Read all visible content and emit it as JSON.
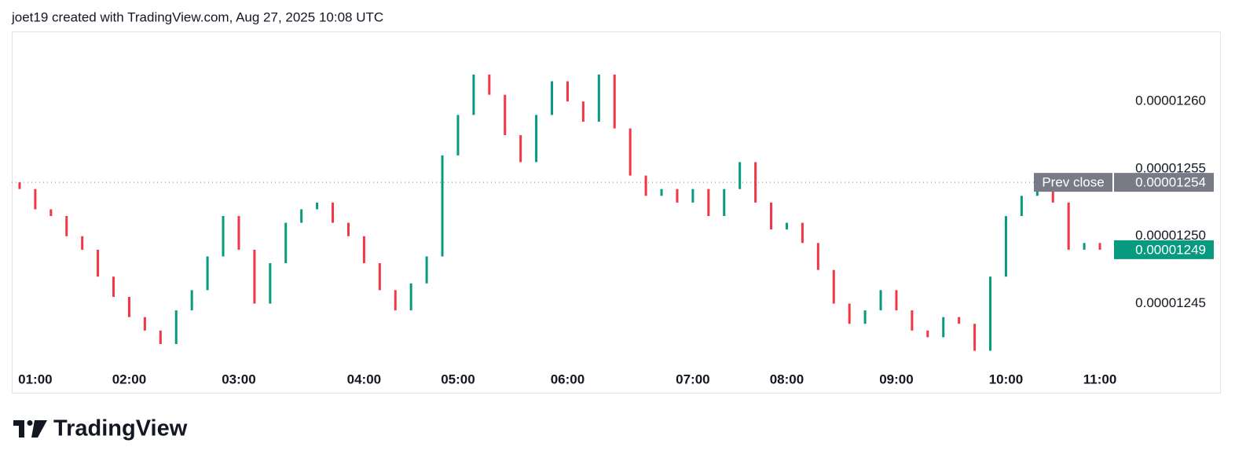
{
  "header": {
    "credit": "joet19 created with TradingView.com, Aug 27, 2025 10:08 UTC"
  },
  "footer": {
    "brand": "TradingView"
  },
  "chart_data": {
    "type": "candlestick",
    "categories": [
      null,
      "01:00",
      null,
      null,
      null,
      null,
      null,
      "02:00",
      null,
      null,
      null,
      null,
      null,
      null,
      "03:00",
      null,
      null,
      null,
      null,
      null,
      null,
      null,
      "04:00",
      null,
      null,
      null,
      null,
      null,
      "05:00",
      null,
      null,
      null,
      null,
      null,
      null,
      "06:00",
      null,
      null,
      null,
      null,
      null,
      null,
      null,
      "07:00",
      null,
      null,
      null,
      null,
      null,
      "08:00",
      null,
      null,
      null,
      null,
      null,
      null,
      "09:00",
      null,
      null,
      null,
      null,
      null,
      null,
      "10:00",
      null,
      null,
      null,
      null,
      null,
      "11:00"
    ],
    "series": [
      {
        "up_color": "#089981",
        "down_color": "#f23645",
        "opens": [
          1.254e-05,
          1.2535e-05,
          1.252e-05,
          1.2515e-05,
          1.25e-05,
          1.249e-05,
          1.247e-05,
          1.2455e-05,
          1.244e-05,
          1.243e-05,
          1.242e-05,
          1.2445e-05,
          1.246e-05,
          1.2485e-05,
          1.2515e-05,
          1.249e-05,
          1.245e-05,
          1.248e-05,
          1.251e-05,
          1.252e-05,
          1.2525e-05,
          1.251e-05,
          1.25e-05,
          1.248e-05,
          1.246e-05,
          1.2445e-05,
          1.2465e-05,
          1.2485e-05,
          1.256e-05,
          1.259e-05,
          1.262e-05,
          1.2605e-05,
          1.2575e-05,
          1.2555e-05,
          1.259e-05,
          1.2615e-05,
          1.26e-05,
          1.2585e-05,
          1.262e-05,
          1.258e-05,
          1.2545e-05,
          1.253e-05,
          1.2535e-05,
          1.2525e-05,
          1.2535e-05,
          1.2515e-05,
          1.2535e-05,
          1.2555e-05,
          1.2525e-05,
          1.2505e-05,
          1.251e-05,
          1.2495e-05,
          1.2475e-05,
          1.245e-05,
          1.2435e-05,
          1.2445e-05,
          1.246e-05,
          1.2445e-05,
          1.243e-05,
          1.2425e-05,
          1.244e-05,
          1.2435e-05,
          1.2415e-05,
          1.247e-05,
          1.2515e-05,
          1.253e-05,
          1.2535e-05,
          1.2525e-05,
          1.249e-05,
          1.2495e-05
        ],
        "closes": [
          1.2535e-05,
          1.252e-05,
          1.2515e-05,
          1.25e-05,
          1.249e-05,
          1.247e-05,
          1.2455e-05,
          1.244e-05,
          1.243e-05,
          1.242e-05,
          1.2445e-05,
          1.246e-05,
          1.2485e-05,
          1.2515e-05,
          1.249e-05,
          1.245e-05,
          1.248e-05,
          1.251e-05,
          1.252e-05,
          1.2525e-05,
          1.251e-05,
          1.25e-05,
          1.248e-05,
          1.246e-05,
          1.2445e-05,
          1.2465e-05,
          1.2485e-05,
          1.256e-05,
          1.259e-05,
          1.262e-05,
          1.2605e-05,
          1.2575e-05,
          1.2555e-05,
          1.259e-05,
          1.2615e-05,
          1.26e-05,
          1.2585e-05,
          1.262e-05,
          1.258e-05,
          1.2545e-05,
          1.253e-05,
          1.2535e-05,
          1.2525e-05,
          1.2535e-05,
          1.2515e-05,
          1.2535e-05,
          1.2555e-05,
          1.2525e-05,
          1.2505e-05,
          1.251e-05,
          1.2495e-05,
          1.2475e-05,
          1.245e-05,
          1.2435e-05,
          1.2445e-05,
          1.246e-05,
          1.2445e-05,
          1.243e-05,
          1.2425e-05,
          1.244e-05,
          1.2435e-05,
          1.2415e-05,
          1.247e-05,
          1.2515e-05,
          1.253e-05,
          1.2535e-05,
          1.2525e-05,
          1.249e-05,
          1.2495e-05,
          1.249e-05
        ]
      }
    ],
    "ylim": [
      1.2406e-05,
      1.2652e-05
    ],
    "yticks": [
      {
        "value": 1.245e-05,
        "label": "0.00001245"
      },
      {
        "value": 1.25e-05,
        "label": "0.00001250"
      },
      {
        "value": 1.255e-05,
        "label": "0.00001255"
      },
      {
        "value": 1.26e-05,
        "label": "0.00001260"
      }
    ],
    "prev_close": {
      "text": "Prev close",
      "value": 1.254e-05,
      "label": "0.00001254",
      "color": "#787b86"
    },
    "last_price": {
      "value": 1.249e-05,
      "label": "0.00001249",
      "color": "#089981"
    },
    "grid": false
  }
}
